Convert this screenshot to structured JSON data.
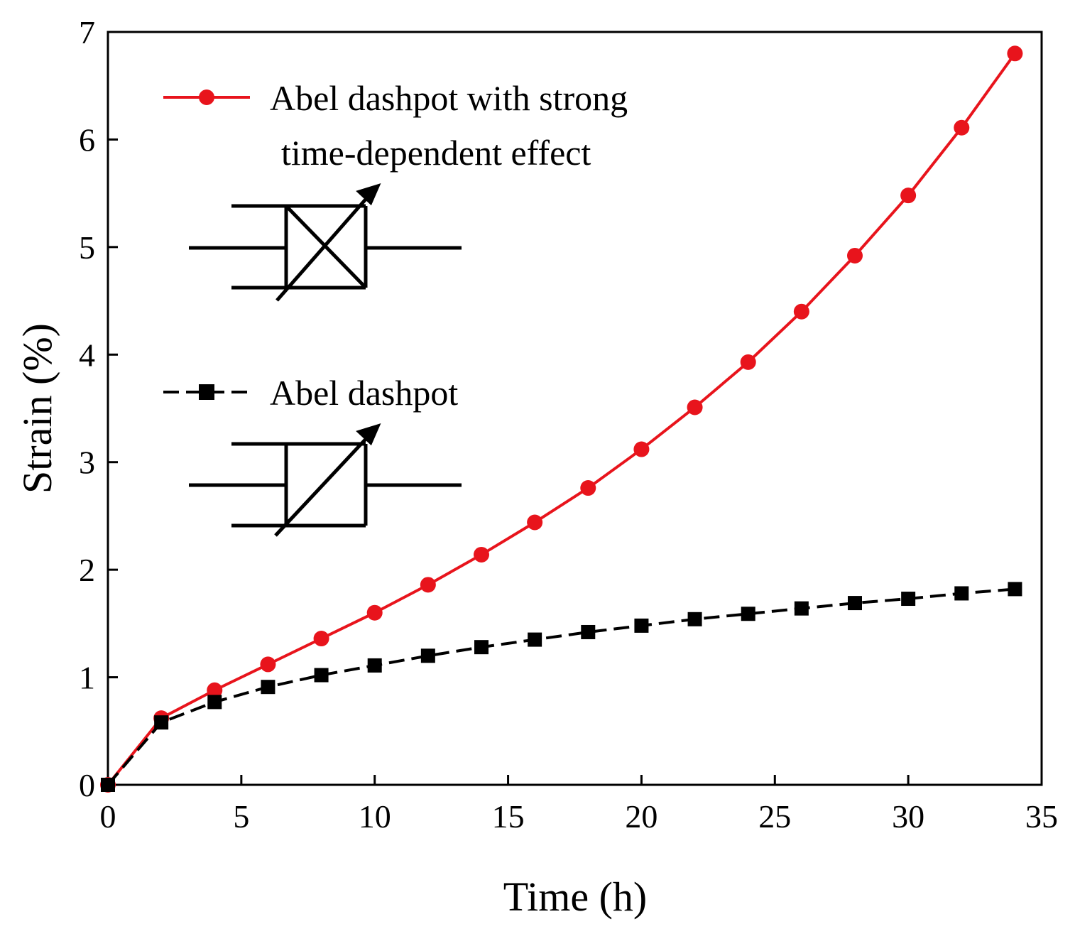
{
  "chart_data": {
    "type": "line",
    "title": "",
    "xlabel": "Time (h)",
    "ylabel": "Strain (%)",
    "xlim": [
      0,
      35
    ],
    "ylim": [
      0,
      7
    ],
    "xticks": [
      0,
      5,
      10,
      15,
      20,
      25,
      30,
      35
    ],
    "yticks": [
      0,
      1,
      2,
      3,
      4,
      5,
      6,
      7
    ],
    "grid": false,
    "x": [
      0,
      2,
      4,
      6,
      8,
      10,
      12,
      14,
      16,
      18,
      20,
      22,
      24,
      26,
      28,
      30,
      32,
      34
    ],
    "series": [
      {
        "name": "Abel dashpot with strong time-dependent effect",
        "legend_lines": [
          "Abel dashpot with strong",
          "time-dependent effect"
        ],
        "color": "#e8141c",
        "marker": "circle",
        "values": [
          0,
          0.62,
          0.88,
          1.12,
          1.36,
          1.6,
          1.86,
          2.14,
          2.44,
          2.76,
          3.12,
          3.51,
          3.93,
          4.4,
          4.92,
          5.48,
          6.11,
          6.8
        ]
      },
      {
        "name": "Abel dashpot",
        "legend_lines": [
          "Abel dashpot"
        ],
        "color": "#000000",
        "marker": "square",
        "values": [
          0,
          0.58,
          0.77,
          0.91,
          1.02,
          1.11,
          1.2,
          1.28,
          1.35,
          1.42,
          1.48,
          1.54,
          1.59,
          1.64,
          1.69,
          1.73,
          1.78,
          1.82
        ]
      }
    ],
    "legend_position": "top-left"
  }
}
